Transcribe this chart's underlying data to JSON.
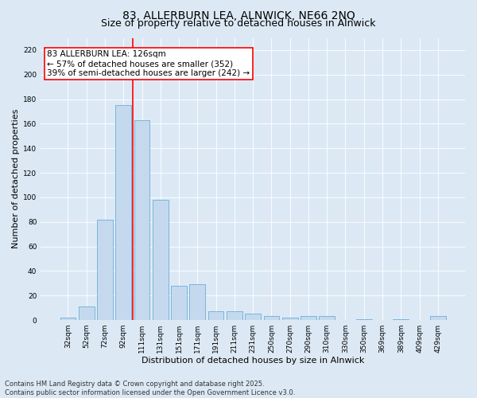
{
  "title_line1": "83, ALLERBURN LEA, ALNWICK, NE66 2NQ",
  "title_line2": "Size of property relative to detached houses in Alnwick",
  "xlabel": "Distribution of detached houses by size in Alnwick",
  "ylabel": "Number of detached properties",
  "categories": [
    "32sqm",
    "52sqm",
    "72sqm",
    "92sqm",
    "111sqm",
    "131sqm",
    "151sqm",
    "171sqm",
    "191sqm",
    "211sqm",
    "231sqm",
    "250sqm",
    "270sqm",
    "290sqm",
    "310sqm",
    "330sqm",
    "350sqm",
    "369sqm",
    "389sqm",
    "409sqm",
    "429sqm"
  ],
  "values": [
    2,
    11,
    82,
    175,
    163,
    98,
    28,
    29,
    7,
    7,
    5,
    3,
    2,
    3,
    3,
    0,
    1,
    0,
    1,
    0,
    3
  ],
  "bar_color": "#c5d9ee",
  "bar_edge_color": "#6baed6",
  "background_color": "#dce9f5",
  "vline_x": 3.5,
  "vline_color": "red",
  "annotation_text": "83 ALLERBURN LEA: 126sqm\n← 57% of detached houses are smaller (352)\n39% of semi-detached houses are larger (242) →",
  "annotation_box_color": "white",
  "annotation_box_edge_color": "red",
  "ylim": [
    0,
    230
  ],
  "yticks": [
    0,
    20,
    40,
    60,
    80,
    100,
    120,
    140,
    160,
    180,
    200,
    220
  ],
  "footer_line1": "Contains HM Land Registry data © Crown copyright and database right 2025.",
  "footer_line2": "Contains public sector information licensed under the Open Government Licence v3.0.",
  "title_fontsize": 10,
  "subtitle_fontsize": 9,
  "axis_label_fontsize": 8,
  "tick_fontsize": 6.5,
  "annotation_fontsize": 7.5,
  "footer_fontsize": 6
}
